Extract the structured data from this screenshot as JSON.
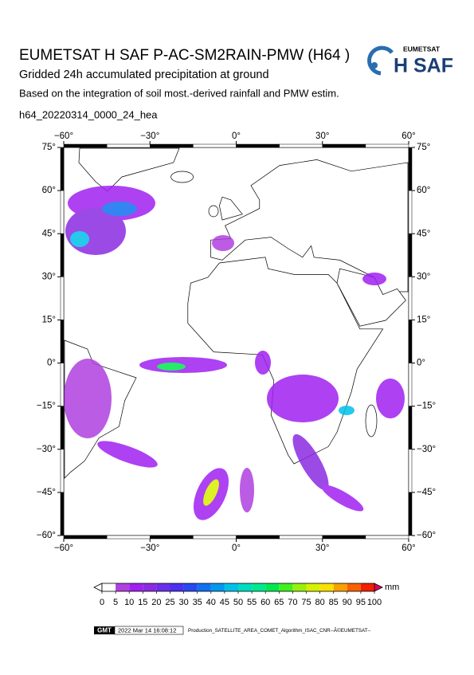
{
  "header": {
    "title": "EUMETSAT H SAF P-AC-SM2RAIN-PMW (H64 )",
    "subtitle": "Gridded 24h accumulated precipitation at ground",
    "description": "Based on the integration of soil most.-derived rainfall and PMW estim.",
    "file_id": "h64_20220314_0000_24_hea"
  },
  "logo": {
    "org": "EUMETSAT",
    "name": "H SAF"
  },
  "map": {
    "lon_range": [
      -60,
      60
    ],
    "lat_range": [
      -60,
      75
    ],
    "lon_ticks": [
      {
        "value": -60,
        "label": "−60°"
      },
      {
        "value": -30,
        "label": "−30°"
      },
      {
        "value": 0,
        "label": "0°"
      },
      {
        "value": 30,
        "label": "30°"
      },
      {
        "value": 60,
        "label": "60°"
      }
    ],
    "lat_ticks": [
      {
        "value": 75,
        "label": "75°"
      },
      {
        "value": 60,
        "label": "60°"
      },
      {
        "value": 45,
        "label": "45°"
      },
      {
        "value": 30,
        "label": "30°"
      },
      {
        "value": 15,
        "label": "15°"
      },
      {
        "value": 0,
        "label": "0°"
      },
      {
        "value": -15,
        "label": "−15°"
      },
      {
        "value": -30,
        "label": "−30°"
      },
      {
        "value": -45,
        "label": "−45°"
      },
      {
        "value": -60,
        "label": "−60°"
      }
    ]
  },
  "colorbar": {
    "unit": "mm",
    "ticks": [
      0,
      5,
      10,
      15,
      20,
      25,
      30,
      35,
      40,
      45,
      50,
      55,
      60,
      65,
      70,
      75,
      80,
      85,
      90,
      95,
      100
    ],
    "colors": [
      "#ffffff",
      "#b040e0",
      "#a020f0",
      "#8a2be2",
      "#6a30e8",
      "#4b30f0",
      "#2848f0",
      "#1070f0",
      "#0098f0",
      "#00c0e8",
      "#00dcc0",
      "#00e890",
      "#00e850",
      "#40f020",
      "#98f010",
      "#d8f000",
      "#f8e000",
      "#f8a000",
      "#f86000",
      "#f02000"
    ]
  },
  "footer": {
    "gmt": "GMT",
    "timestamp": "2022 Mar 14 16:08:12",
    "production": "Production_SATELLITE_AREA_COMET_Algorithm_ISAC_CNR--Ã©EUMETSAT--"
  }
}
